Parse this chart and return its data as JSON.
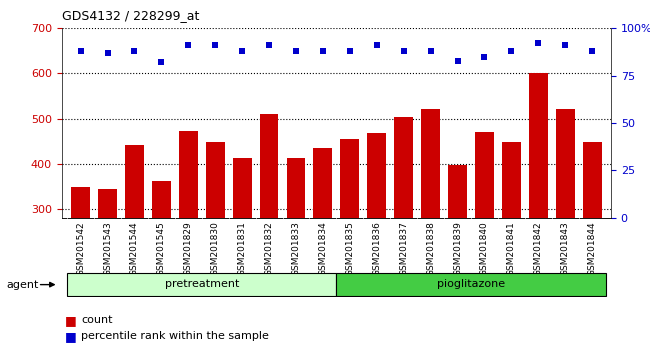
{
  "title": "GDS4132 / 228299_at",
  "categories": [
    "GSM201542",
    "GSM201543",
    "GSM201544",
    "GSM201545",
    "GSM201829",
    "GSM201830",
    "GSM201831",
    "GSM201832",
    "GSM201833",
    "GSM201834",
    "GSM201835",
    "GSM201836",
    "GSM201837",
    "GSM201838",
    "GSM201839",
    "GSM201840",
    "GSM201841",
    "GSM201842",
    "GSM201843",
    "GSM201844"
  ],
  "bar_values": [
    348,
    343,
    442,
    362,
    472,
    447,
    412,
    510,
    413,
    435,
    455,
    468,
    504,
    520,
    398,
    470,
    448,
    602,
    522,
    447
  ],
  "percentile_values": [
    88,
    87,
    88,
    82,
    91,
    91,
    88,
    91,
    88,
    88,
    88,
    91,
    88,
    88,
    83,
    85,
    88,
    92,
    91,
    88
  ],
  "bar_color": "#cc0000",
  "percentile_color": "#0000cc",
  "ylim_left": [
    280,
    700
  ],
  "ylim_right": [
    0,
    100
  ],
  "yticks_left": [
    300,
    400,
    500,
    600,
    700
  ],
  "yticks_right": [
    0,
    25,
    50,
    75,
    100
  ],
  "group1_label": "pretreatment",
  "group2_label": "pioglitazone",
  "group1_count": 10,
  "group2_count": 10,
  "group1_color": "#ccffcc",
  "group2_color": "#44cc44",
  "agent_label": "agent",
  "legend_count_label": "count",
  "legend_pct_label": "percentile rank within the sample",
  "bg_color": "#ffffff",
  "title_color": "#000000",
  "left_tick_color": "#cc0000",
  "right_tick_color": "#0000cc",
  "grid_color": "#000000",
  "xtick_bg": "#c8c8c8"
}
